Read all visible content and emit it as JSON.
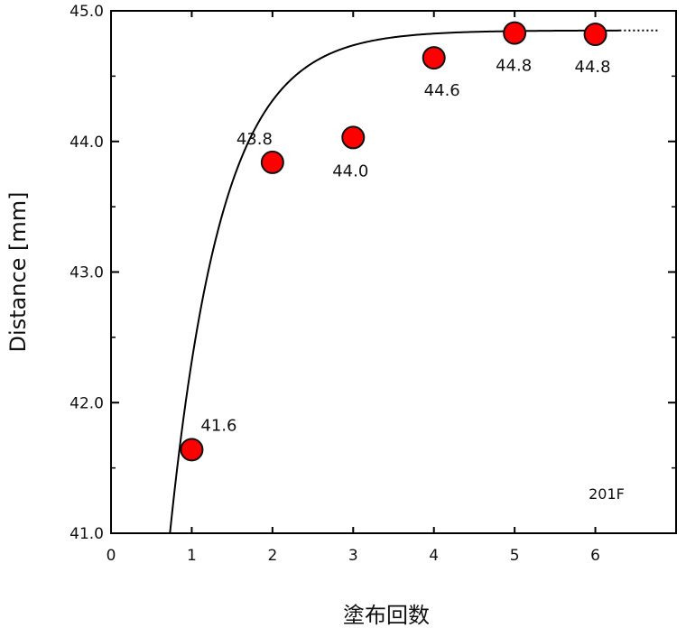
{
  "chart_data": {
    "type": "scatter",
    "title": "",
    "xlabel": "塗布回数",
    "ylabel": "Distance [mm]",
    "xlim": [
      0,
      7
    ],
    "ylim": [
      41.0,
      45.0
    ],
    "x_ticks": [
      "0",
      "1",
      "2",
      "3",
      "4",
      "5",
      "6"
    ],
    "y_ticks": [
      "41.0",
      "42.0",
      "43.0",
      "44.0",
      "45.0"
    ],
    "grid": false,
    "annotation": "201F",
    "points": [
      {
        "x": 1,
        "y": 41.64,
        "label": "41.6"
      },
      {
        "x": 2,
        "y": 43.84,
        "label": "43.8"
      },
      {
        "x": 3,
        "y": 44.03,
        "label": "44.0"
      },
      {
        "x": 4,
        "y": 44.64,
        "label": "44.6"
      },
      {
        "x": 5,
        "y": 44.83,
        "label": "44.8"
      },
      {
        "x": 6,
        "y": 44.82,
        "label": "44.8"
      }
    ],
    "curve": {
      "kind": "saturating-exponential",
      "asymptote": 44.85,
      "x_start": 0.73,
      "x_end_solid": 6.3,
      "x_end_dotted": 6.8,
      "shape_k": 1.0
    },
    "colors": {
      "marker_fill": "#ff0000",
      "marker_stroke": "#111111",
      "curve": "#000000",
      "axes": "#000000"
    }
  }
}
